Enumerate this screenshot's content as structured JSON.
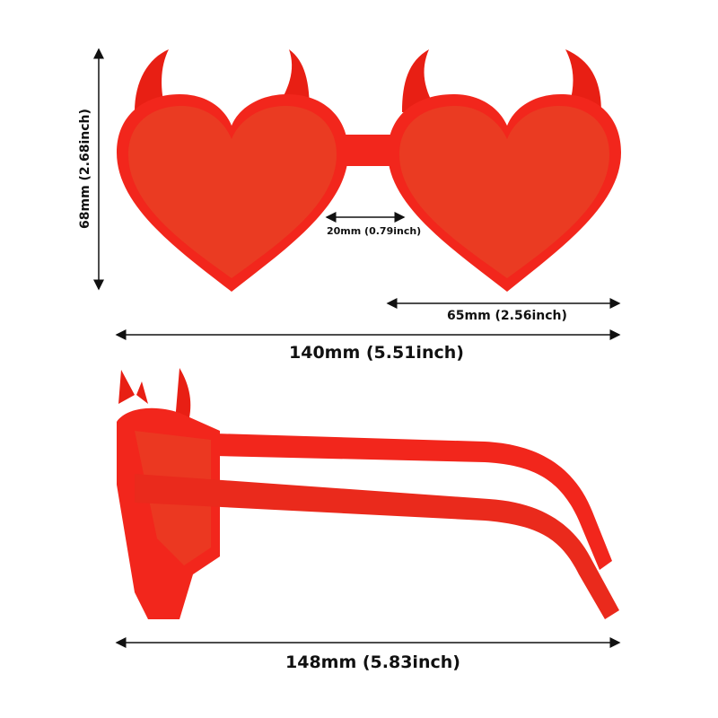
{
  "dimensions": {
    "height": "68mm (2.68inch)",
    "bridge": "20mm (0.79inch)",
    "lens_width": "65mm (2.56inch)",
    "frame_width": "140mm (5.51inch)",
    "temple_length": "148mm (5.83inch)"
  },
  "colors": {
    "frame": "#f2261c",
    "lens": "#ee3a22",
    "frame_dark": "#d81a10",
    "arrow": "#111111"
  }
}
